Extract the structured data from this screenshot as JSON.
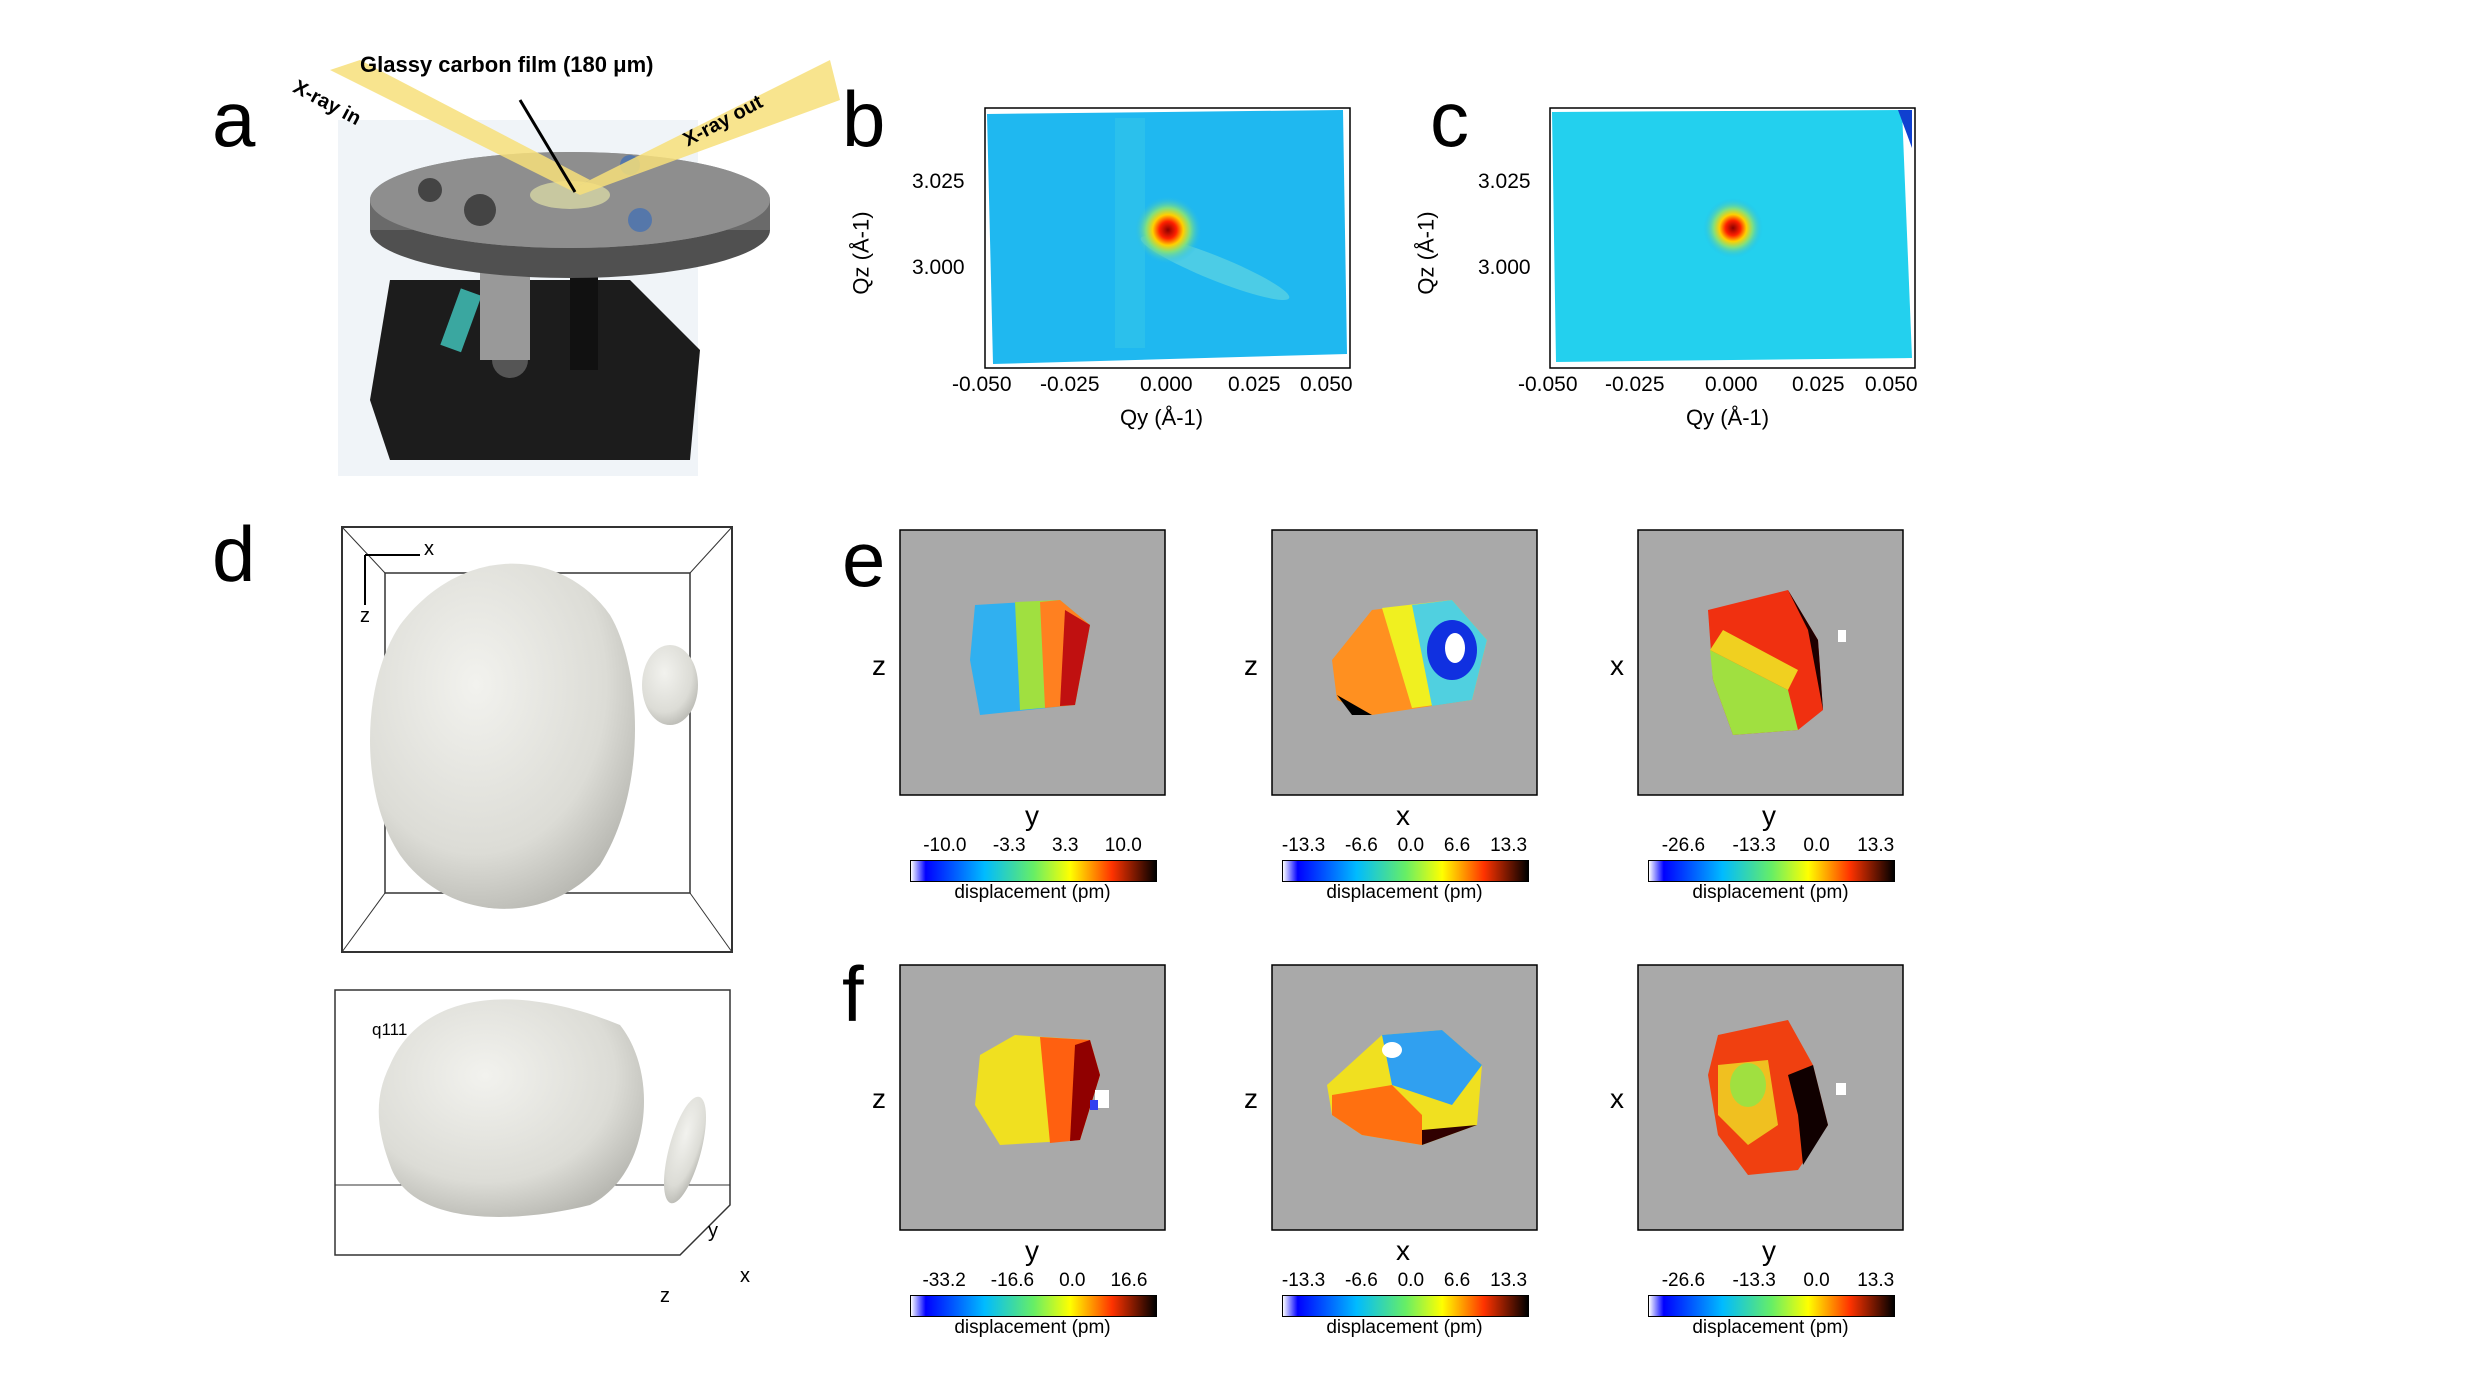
{
  "panels": {
    "a": {
      "label": "a",
      "film_text": "Glassy carbon film (180 μm)",
      "xray_in": "X-ray in",
      "xray_out": "X-ray out"
    },
    "b": {
      "label": "b",
      "ylabel": "Qz (Å-1)",
      "xlabel": "Qy (Å-1)",
      "xticks": [
        "-0.050",
        "-0.025",
        "0.000",
        "0.025",
        "0.050"
      ],
      "yticks": [
        "3.025",
        "3.000"
      ]
    },
    "c": {
      "label": "c",
      "ylabel": "Qz (Å-1)",
      "xlabel": "Qy (Å-1)",
      "xticks": [
        "-0.050",
        "-0.025",
        "0.000",
        "0.025",
        "0.050"
      ],
      "yticks": [
        "3.025",
        "3.000"
      ]
    },
    "d": {
      "label": "d",
      "top_axes": {
        "x": "x",
        "z": "z"
      },
      "bottom_axes": {
        "q": "q111",
        "y": "y",
        "x": "x",
        "z": "z"
      }
    },
    "e": {
      "label": "e",
      "maps": [
        {
          "ylabel": "z",
          "xlabel": "y",
          "ticks": [
            "-10.0",
            "-3.3",
            "3.3",
            "10.0"
          ],
          "cbtitle": "displacement (pm)"
        },
        {
          "ylabel": "z",
          "xlabel": "x",
          "ticks": [
            "-13.3",
            "-6.6",
            "0.0",
            "6.6",
            "13.3"
          ],
          "cbtitle": "displacement (pm)"
        },
        {
          "ylabel": "x",
          "xlabel": "y",
          "ticks": [
            "-26.6",
            "-13.3",
            "0.0",
            "13.3"
          ],
          "cbtitle": "displacement (pm)"
        }
      ]
    },
    "f": {
      "label": "f",
      "maps": [
        {
          "ylabel": "z",
          "xlabel": "y",
          "ticks": [
            "-33.2",
            "-16.6",
            "0.0",
            "16.6"
          ],
          "cbtitle": "displacement (pm)"
        },
        {
          "ylabel": "z",
          "xlabel": "x",
          "ticks": [
            "-13.3",
            "-6.6",
            "0.0",
            "6.6",
            "13.3"
          ],
          "cbtitle": "displacement (pm)"
        },
        {
          "ylabel": "x",
          "xlabel": "y",
          "ticks": [
            "-26.6",
            "-13.3",
            "0.0",
            "13.3"
          ],
          "cbtitle": "displacement (pm)"
        }
      ]
    }
  },
  "colors": {
    "map_bg": "#a9a9a9",
    "diffraction_bg": "#1fb8f0"
  }
}
